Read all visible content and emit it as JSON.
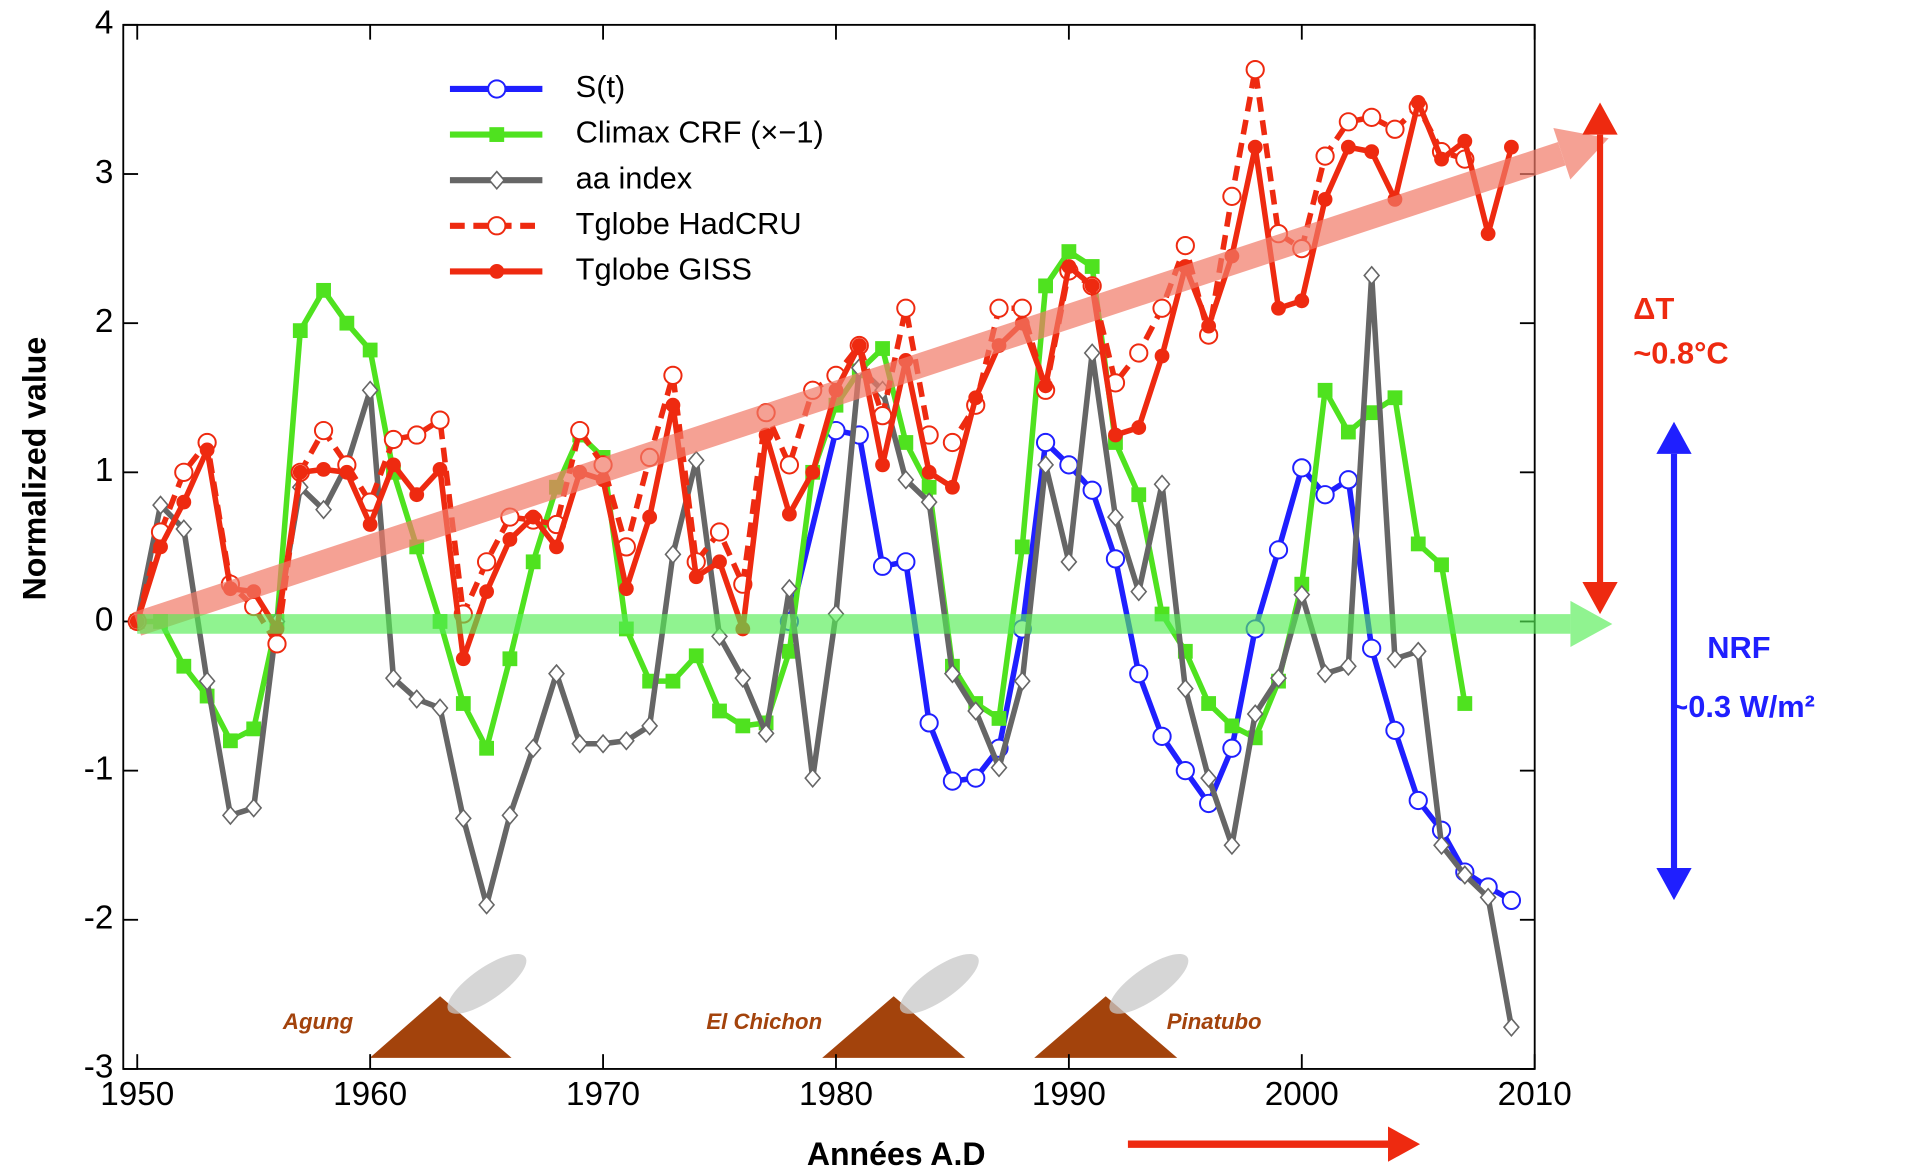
{
  "chart_data": {
    "type": "line",
    "x_label": "Années A.D",
    "y_label": "Normalized value",
    "xlim": [
      1949.4,
      2010
    ],
    "xticks": [
      1950,
      1960,
      1970,
      1980,
      1990,
      2000,
      2010
    ],
    "ylim": [
      -3,
      4
    ],
    "yticks": [
      -3,
      -2,
      -1,
      0,
      1,
      2,
      3,
      4
    ],
    "legend": "upper center",
    "annotations": {
      "delta_t": "ΔT",
      "delta_t_value": "~0.8°C",
      "nrf": "NRF",
      "nrf_value": "~0.3 W/m²",
      "volcanoes": [
        "Agung",
        "El Chichon",
        "Pinatubo"
      ]
    },
    "series": [
      {
        "name": "S(t)",
        "color": "#1f1fff",
        "marker": "circle-open",
        "dashed": false,
        "x": [
          1978,
          1980,
          1981,
          1982,
          1983,
          1984,
          1985,
          1986,
          1987,
          1988,
          1989,
          1990,
          1991,
          1992,
          1993,
          1994,
          1995,
          1996,
          1997,
          1998,
          1999,
          2000,
          2001,
          2002,
          2003,
          2004,
          2005,
          2006,
          2007,
          2008,
          2009
        ],
        "values": [
          0,
          1.28,
          1.25,
          0.37,
          0.4,
          -0.68,
          -1.07,
          -1.05,
          -0.85,
          -0.05,
          1.2,
          1.05,
          0.88,
          0.42,
          -0.35,
          -0.77,
          -1.0,
          -1.22,
          -0.85,
          -0.05,
          0.48,
          1.03,
          0.85,
          0.95,
          -0.18,
          -0.73,
          -1.2,
          -1.4,
          -1.68,
          -1.78,
          -1.87
        ]
      },
      {
        "name": "Climax CRF (×−1)",
        "color": "#4fe21f",
        "marker": "square",
        "dashed": false,
        "x": [
          1950,
          1951,
          1952,
          1953,
          1954,
          1955,
          1956,
          1957,
          1958,
          1959,
          1960,
          1961,
          1962,
          1963,
          1964,
          1965,
          1966,
          1967,
          1968,
          1969,
          1970,
          1971,
          1972,
          1973,
          1974,
          1975,
          1976,
          1977,
          1978,
          1979,
          1980,
          1981,
          1982,
          1983,
          1984,
          1985,
          1986,
          1987,
          1988,
          1989,
          1990,
          1991,
          1992,
          1993,
          1994,
          1995,
          1996,
          1997,
          1998,
          1999,
          2000,
          2001,
          2002,
          2003,
          2004,
          2005,
          2006,
          2007
        ],
        "values": [
          0,
          0,
          -0.3,
          -0.5,
          -0.8,
          -0.72,
          0,
          1.95,
          2.22,
          2.0,
          1.82,
          1.0,
          0.5,
          0,
          -0.55,
          -0.85,
          -0.25,
          0.4,
          0.9,
          1.25,
          1.1,
          -0.05,
          -0.4,
          -0.4,
          -0.23,
          -0.6,
          -0.7,
          -0.68,
          -0.2,
          1.0,
          1.45,
          1.68,
          1.83,
          1.2,
          0.9,
          -0.3,
          -0.55,
          -0.65,
          0.5,
          2.25,
          2.48,
          2.38,
          1.2,
          0.85,
          0.05,
          -0.2,
          -0.55,
          -0.7,
          -0.78,
          -0.4,
          0.25,
          1.55,
          1.27,
          1.4,
          1.5,
          0.52,
          0.38,
          -0.55
        ]
      },
      {
        "name": "aa index",
        "color": "#666666",
        "marker": "diamond-open",
        "dashed": false,
        "x": [
          1950,
          1951,
          1952,
          1953,
          1954,
          1955,
          1956,
          1957,
          1958,
          1959,
          1960,
          1961,
          1962,
          1963,
          1964,
          1965,
          1966,
          1967,
          1968,
          1969,
          1970,
          1971,
          1972,
          1973,
          1974,
          1975,
          1976,
          1977,
          1978,
          1979,
          1980,
          1981,
          1982,
          1983,
          1984,
          1985,
          1986,
          1987,
          1988,
          1989,
          1990,
          1991,
          1992,
          1993,
          1994,
          1995,
          1996,
          1997,
          1998,
          1999,
          2000,
          2001,
          2002,
          2003,
          2004,
          2005,
          2006,
          2007,
          2008,
          2009
        ],
        "values": [
          0,
          0.78,
          0.62,
          -0.4,
          -1.3,
          -1.25,
          0,
          0.9,
          0.75,
          1.05,
          1.55,
          -0.38,
          -0.52,
          -0.58,
          -1.32,
          -1.9,
          -1.3,
          -0.85,
          -0.35,
          -0.82,
          -0.82,
          -0.8,
          -0.7,
          0.45,
          1.08,
          -0.1,
          -0.38,
          -0.75,
          0.22,
          -1.05,
          0.05,
          1.7,
          1.55,
          0.95,
          0.8,
          -0.35,
          -0.6,
          -0.98,
          -0.4,
          1.05,
          0.4,
          1.8,
          0.7,
          0.2,
          0.92,
          -0.45,
          -1.05,
          -1.5,
          -0.62,
          -0.38,
          0.18,
          -0.35,
          -0.3,
          2.32,
          -0.25,
          -0.2,
          -1.5,
          -1.7,
          -1.85,
          -2.72
        ]
      },
      {
        "name": "Tglobe HadCRU",
        "color": "#ee2a10",
        "marker": "circle-open",
        "dashed": true,
        "x": [
          1950,
          1951,
          1952,
          1953,
          1954,
          1955,
          1956,
          1957,
          1958,
          1959,
          1960,
          1961,
          1962,
          1963,
          1964,
          1965,
          1966,
          1967,
          1968,
          1969,
          1970,
          1971,
          1972,
          1973,
          1974,
          1975,
          1976,
          1977,
          1978,
          1979,
          1980,
          1981,
          1982,
          1983,
          1984,
          1985,
          1986,
          1987,
          1988,
          1989,
          1990,
          1991,
          1992,
          1993,
          1994,
          1995,
          1996,
          1997,
          1998,
          1999,
          2000,
          2001,
          2002,
          2003,
          2004,
          2005,
          2006,
          2007
        ],
        "values": [
          0,
          0.6,
          1.0,
          1.2,
          0.25,
          0.1,
          -0.15,
          1.0,
          1.28,
          1.05,
          0.8,
          1.22,
          1.25,
          1.35,
          0.05,
          0.4,
          0.7,
          0.68,
          0.65,
          1.28,
          1.05,
          0.5,
          1.1,
          1.65,
          0.4,
          0.6,
          0.25,
          1.4,
          1.05,
          1.55,
          1.65,
          1.85,
          1.38,
          2.1,
          1.25,
          1.2,
          1.45,
          2.1,
          2.1,
          1.55,
          2.35,
          2.25,
          1.6,
          1.8,
          2.1,
          2.52,
          1.92,
          2.85,
          3.7,
          2.6,
          2.5,
          3.12,
          3.35,
          3.38,
          3.3,
          3.45,
          3.15,
          3.1
        ]
      },
      {
        "name": "Tglobe GISS",
        "color": "#ee2a10",
        "marker": "circle",
        "dashed": false,
        "x": [
          1950,
          1951,
          1952,
          1953,
          1954,
          1955,
          1956,
          1957,
          1958,
          1959,
          1960,
          1961,
          1962,
          1963,
          1964,
          1965,
          1966,
          1967,
          1968,
          1969,
          1970,
          1971,
          1972,
          1973,
          1974,
          1975,
          1976,
          1977,
          1978,
          1979,
          1980,
          1981,
          1982,
          1983,
          1984,
          1985,
          1986,
          1987,
          1988,
          1989,
          1990,
          1991,
          1992,
          1993,
          1994,
          1995,
          1996,
          1997,
          1998,
          1999,
          2000,
          2001,
          2002,
          2003,
          2004,
          2005,
          2006,
          2007,
          2008,
          2009
        ],
        "values": [
          0,
          0.5,
          0.8,
          1.15,
          0.22,
          0.2,
          -0.05,
          1.0,
          1.02,
          1.0,
          0.65,
          1.05,
          0.85,
          1.02,
          -0.25,
          0.2,
          0.55,
          0.7,
          0.5,
          1.0,
          0.95,
          0.22,
          0.7,
          1.45,
          0.3,
          0.4,
          -0.05,
          1.25,
          0.72,
          1.0,
          1.55,
          1.85,
          1.05,
          1.75,
          1.0,
          0.9,
          1.5,
          1.85,
          2.0,
          1.58,
          2.38,
          2.25,
          1.25,
          1.3,
          1.78,
          2.38,
          1.98,
          2.45,
          3.18,
          2.1,
          2.15,
          2.83,
          3.18,
          3.15,
          2.83,
          3.48,
          3.1,
          3.22,
          2.6,
          3.18
        ]
      }
    ]
  }
}
